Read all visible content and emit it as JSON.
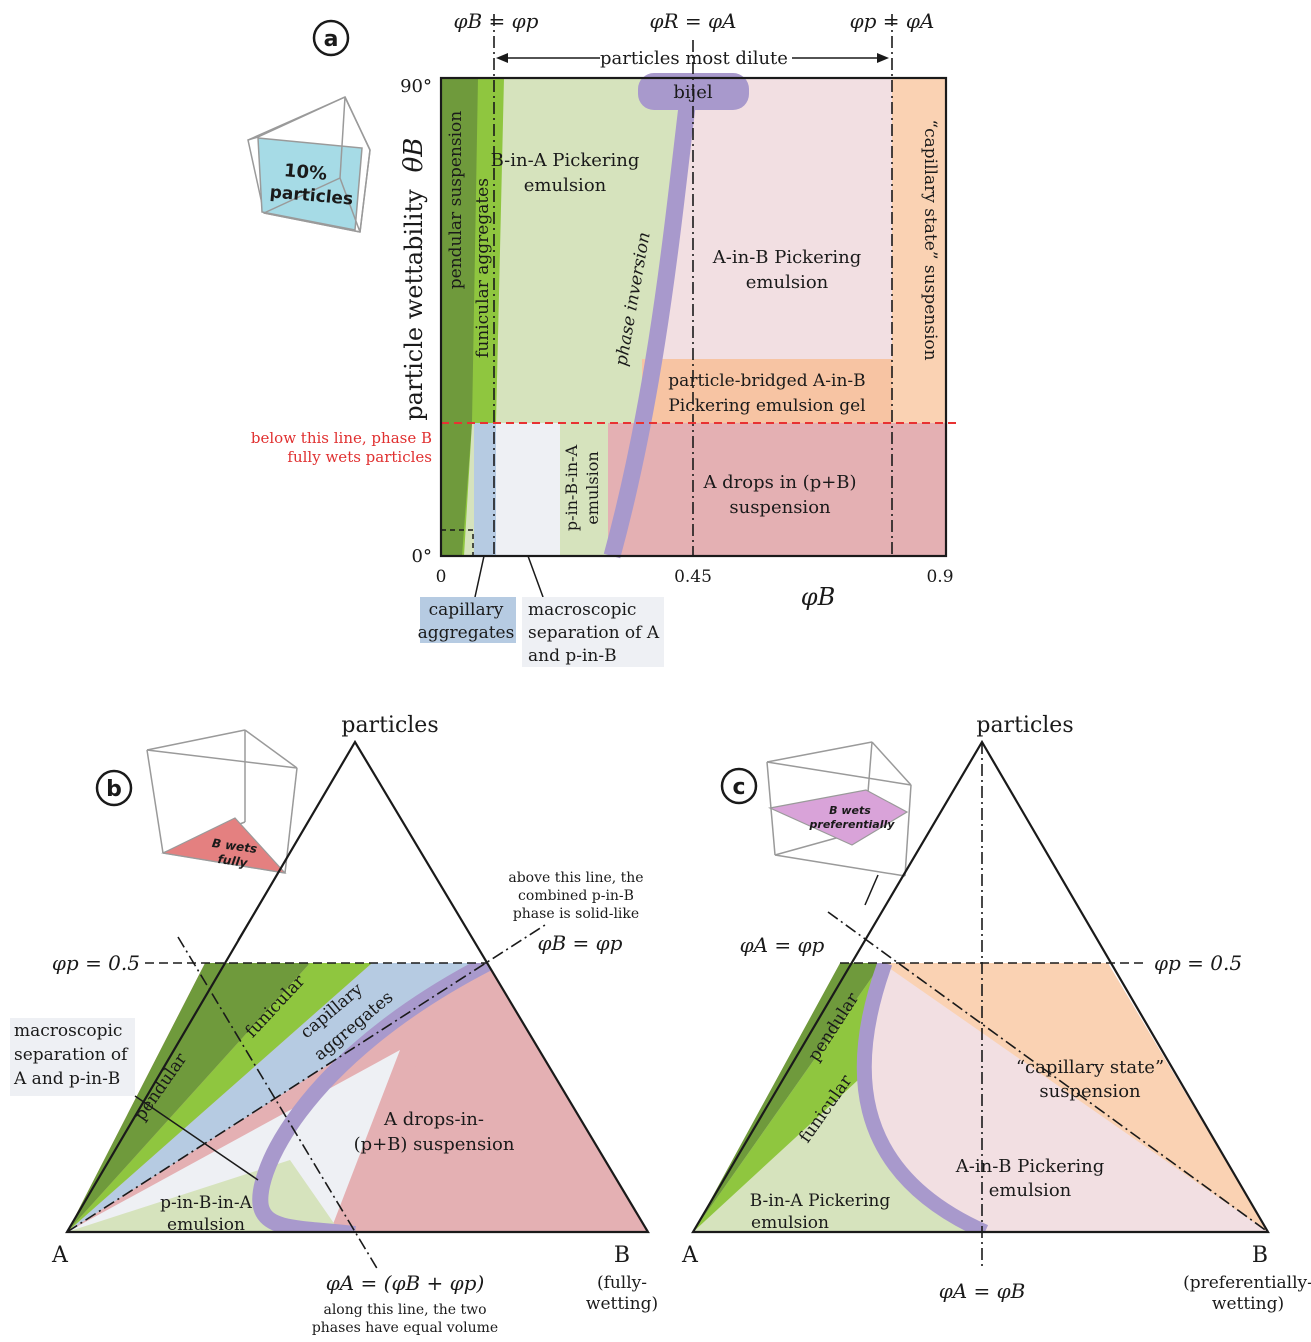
{
  "colors": {
    "pendular": "#6f9a3c",
    "funicular": "#8fc63f",
    "capillary_aggregates": "#b6cbe2",
    "macroscopic_separation": "#eef0f4",
    "b_in_a": "#d6e3bd",
    "a_in_b": "#f2dfe2",
    "a_drops": "#e4b0b3",
    "capillary_state": "#fad2b3",
    "gel": "#f7c4a3",
    "phase_inversion": "#a899cc",
    "red_line": "#e83232",
    "inset_a": "#a6dbe6",
    "inset_b": "#e48080",
    "inset_c": "#d9a3d9"
  },
  "panel_a": {
    "label": "a",
    "top_labels": {
      "left": "φB = φp",
      "middle": "φR = φA",
      "right": "φp = φA"
    },
    "most_dilute": "particles most dilute",
    "y_axis_label": "particle wettability",
    "y_axis_symbol": "θB",
    "y_ticks": [
      "90°",
      "0°"
    ],
    "x_axis_symbol": "φB",
    "x_ticks": [
      "0",
      "0.45",
      "0.9"
    ],
    "inset_line1": "10%",
    "inset_line2": "particles",
    "red_line_label_1": "below this line, phase B",
    "red_line_label_2": "fully wets particles",
    "regions": {
      "pendular": "pendular suspension",
      "funicular": "funicular aggregates",
      "b_in_a_1": "B-in-A Pickering",
      "b_in_a_2": "emulsion",
      "bijel": "bijel",
      "phase_inversion": "phase inversion",
      "a_in_b_1": "A-in-B Pickering",
      "a_in_b_2": "emulsion",
      "capillary_state": "“capillary state” suspension",
      "gel_1": "particle-bridged A-in-B",
      "gel_2": "Pickering emulsion gel",
      "p_in_b_1": "p-in-B-in-A",
      "p_in_b_2": "emulsion",
      "a_drops_1": "A drops in (p+B)",
      "a_drops_2": "suspension"
    },
    "capillary_aggregates_1": "capillary",
    "capillary_aggregates_2": "aggregates",
    "macro_sep_1": "macroscopic",
    "macro_sep_2": "separation of A",
    "macro_sep_3": "and p-in-B"
  },
  "panel_b": {
    "label": "b",
    "apex": "particles",
    "vertex_a": "A",
    "vertex_b": "B",
    "vertex_b_sub1": "(fully-",
    "vertex_b_sub2": "wetting)",
    "phi_p_line": "φp = 0.5",
    "inset_line1": "B wets",
    "inset_line2": "fully",
    "above_line_1": "above this line, the",
    "above_line_2": "combined p-in-B",
    "above_line_3": "phase is solid-like",
    "phi_b_phi_p": "φB = φp",
    "phi_a_eq": "φA = (φB + φp)",
    "equal_vol_1": "along this line, the two",
    "equal_vol_2": "phases have equal volume",
    "regions": {
      "pendular": "pendular",
      "funicular": "funicular",
      "capillary_1": "capillary",
      "capillary_2": "aggregates",
      "a_drops_1": "A drops-in-",
      "a_drops_2": "(p+B) suspension",
      "p_in_b_1": "p-in-B-in-A",
      "p_in_b_2": "emulsion"
    },
    "macro_sep_1": "macroscopic",
    "macro_sep_2": "separation of",
    "macro_sep_3": "A and p-in-B"
  },
  "panel_c": {
    "label": "c",
    "apex": "particles",
    "vertex_a": "A",
    "vertex_b": "B",
    "vertex_b_sub1": "(preferentially-",
    "vertex_b_sub2": "wetting)",
    "phi_a_phi_p": "φA = φp",
    "phi_p_line": "φp = 0.5",
    "phi_a_phi_b": "φA = φB",
    "inset_line1": "B wets",
    "inset_line2": "preferentially",
    "regions": {
      "pendular": "pendular",
      "funicular": "funicular",
      "capillary_state_1": "“capillary state”",
      "capillary_state_2": "suspension",
      "a_in_b_1": "A-in-B Pickering",
      "a_in_b_2": "emulsion",
      "b_in_a_1": "B-in-A Pickering",
      "b_in_a_2": "emulsion"
    }
  }
}
